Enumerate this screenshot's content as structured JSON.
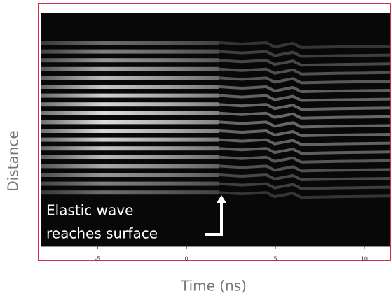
{
  "chart_data": {
    "type": "image",
    "xlabel": "Time (ns)",
    "ylabel": "Distance",
    "xlim": [
      -8.2,
      11.5
    ],
    "xticks": [
      -5,
      0,
      5,
      10
    ],
    "annotation": [
      "Elastic wave",
      "reaches surface"
    ]
  }
}
